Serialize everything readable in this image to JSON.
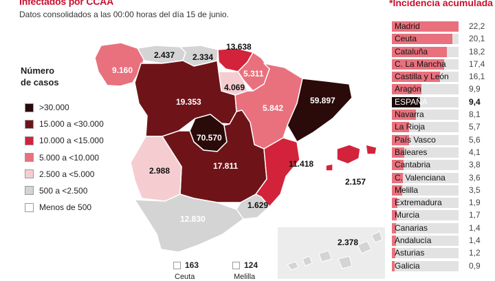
{
  "header": {
    "title": "Infectados por CCAA",
    "subtitle": "Datos consolidados a las 00:00 horas del día 15 de junio."
  },
  "legend": {
    "title_line1": "Número",
    "title_line2": "de casos",
    "items": [
      {
        "label": ">30.000",
        "color": "#2b0a0a"
      },
      {
        "label": "15.000 a <30.000",
        "color": "#6e1419"
      },
      {
        "label": "10.000 a <15.000",
        "color": "#d2233a"
      },
      {
        "label": "5.000 a <10.000",
        "color": "#e8717d"
      },
      {
        "label": "2.500 a <5.000",
        "color": "#f5cdd1"
      },
      {
        "label": "500 a <2.500",
        "color": "#d4d4d4"
      },
      {
        "label": "Menos de 500",
        "color": "#ffffff"
      }
    ]
  },
  "map": {
    "regions": [
      {
        "name": "Galicia",
        "value": "9.160",
        "color": "#e8717d"
      },
      {
        "name": "Asturias",
        "value": "2.437",
        "color": "#d4d4d4"
      },
      {
        "name": "Cantabria",
        "value": "2.334",
        "color": "#d4d4d4"
      },
      {
        "name": "País Vasco",
        "value": "13.638",
        "color": "#d2233a"
      },
      {
        "name": "Navarra",
        "value": "5.311",
        "color": "#e8717d"
      },
      {
        "name": "La Rioja",
        "value": "4.069",
        "color": "#f5cdd1"
      },
      {
        "name": "Castilla y León",
        "value": "19.353",
        "color": "#6e1419"
      },
      {
        "name": "Aragón",
        "value": "5.842",
        "color": "#e8717d"
      },
      {
        "name": "Cataluña",
        "value": "59.897",
        "color": "#2b0a0a"
      },
      {
        "name": "Madrid",
        "value": "70.570",
        "color": "#2b0a0a"
      },
      {
        "name": "Castilla-La Mancha",
        "value": "17.811",
        "color": "#6e1419"
      },
      {
        "name": "Extremadura",
        "value": "2.988",
        "color": "#f5cdd1"
      },
      {
        "name": "C. Valenciana",
        "value": "11.418",
        "color": "#d2233a"
      },
      {
        "name": "Baleares",
        "value": "2.157",
        "color": "#d4d4d4"
      },
      {
        "name": "Murcia",
        "value": "1.629",
        "color": "#d4d4d4"
      },
      {
        "name": "Andalucía",
        "value": "12.830",
        "color": "#d2233a"
      },
      {
        "name": "Canarias",
        "value": "2.378",
        "color": "#d4d4d4"
      }
    ],
    "ceuta": {
      "value": "163",
      "name": "Ceuta"
    },
    "melilla": {
      "value": "124",
      "name": "Melilla"
    }
  },
  "ranking": {
    "title": "*Incidencia acumulada",
    "max": 22.2,
    "rows": [
      {
        "name": "Madrid",
        "value": "22,2",
        "num": 22.2
      },
      {
        "name": "Ceuta",
        "value": "20,1",
        "num": 20.1
      },
      {
        "name": "Cataluña",
        "value": "18,2",
        "num": 18.2
      },
      {
        "name": "C. La Mancha",
        "value": "17,4",
        "num": 17.4
      },
      {
        "name": "Castilla y León",
        "value": "16,1",
        "num": 16.1
      },
      {
        "name": "Aragón",
        "value": "9,9",
        "num": 9.9
      },
      {
        "name": "ESPAÑA",
        "value": "9,4",
        "num": 9.4,
        "national": true
      },
      {
        "name": "Navarra",
        "value": "8,1",
        "num": 8.1
      },
      {
        "name": "La Rioja",
        "value": "5,7",
        "num": 5.7
      },
      {
        "name": "País Vasco",
        "value": "5,6",
        "num": 5.6
      },
      {
        "name": "Baleares",
        "value": "4,1",
        "num": 4.1
      },
      {
        "name": "Cantabria",
        "value": "3,8",
        "num": 3.8
      },
      {
        "name": "C. Valenciana",
        "value": "3,6",
        "num": 3.6
      },
      {
        "name": "Melilla",
        "value": "3,5",
        "num": 3.5
      },
      {
        "name": "Extremadura",
        "value": "1,9",
        "num": 1.9
      },
      {
        "name": "Murcia",
        "value": "1,7",
        "num": 1.7
      },
      {
        "name": "Canarias",
        "value": "1,4",
        "num": 1.4
      },
      {
        "name": "Andalucía",
        "value": "1,4",
        "num": 1.4
      },
      {
        "name": "Asturias",
        "value": "1,2",
        "num": 1.2
      },
      {
        "name": "Galicia",
        "value": "0,9",
        "num": 0.9
      }
    ]
  },
  "chart_data": [
    {
      "type": "map",
      "title": "Infectados por CCAA",
      "subtitle": "Datos consolidados a las 00:00 horas del día 15 de junio.",
      "categories": [
        "Galicia",
        "Asturias",
        "Cantabria",
        "País Vasco",
        "Navarra",
        "La Rioja",
        "Castilla y León",
        "Aragón",
        "Cataluña",
        "Madrid",
        "Castilla-La Mancha",
        "Extremadura",
        "C. Valenciana",
        "Baleares",
        "Murcia",
        "Andalucía",
        "Canarias",
        "Ceuta",
        "Melilla"
      ],
      "values": [
        9160,
        2437,
        2334,
        13638,
        5311,
        4069,
        19353,
        5842,
        59897,
        70570,
        17811,
        2988,
        11418,
        2157,
        1629,
        12830,
        2378,
        163,
        124
      ],
      "legend": ">30.000 | 15.000 a <30.000 | 10.000 a <15.000 | 5.000 a <10.000 | 2.500 a <5.000 | 500 a <2.500 | Menos de 500"
    },
    {
      "type": "bar",
      "orientation": "horizontal",
      "title": "*Incidencia acumulada",
      "categories": [
        "Madrid",
        "Ceuta",
        "Cataluña",
        "C. La Mancha",
        "Castilla y León",
        "Aragón",
        "ESPAÑA",
        "Navarra",
        "La Rioja",
        "País Vasco",
        "Baleares",
        "Cantabria",
        "C. Valenciana",
        "Melilla",
        "Extremadura",
        "Murcia",
        "Canarias",
        "Andalucía",
        "Asturias",
        "Galicia"
      ],
      "values": [
        22.2,
        20.1,
        18.2,
        17.4,
        16.1,
        9.9,
        9.4,
        8.1,
        5.7,
        5.6,
        4.1,
        3.8,
        3.6,
        3.5,
        1.9,
        1.7,
        1.4,
        1.4,
        1.2,
        0.9
      ],
      "xlim": [
        0,
        22.2
      ],
      "grid": false
    }
  ]
}
